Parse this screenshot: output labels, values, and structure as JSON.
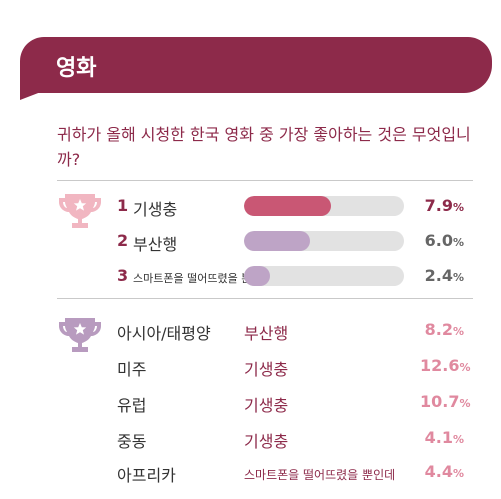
{
  "header": {
    "title": "영화"
  },
  "question": "귀하가 올해 시청한 한국 영화 중 가장 좋아하는 것은 무엇입니까?",
  "colors": {
    "brand": "#8d2a4a",
    "bar_rank1": "#c95774",
    "bar_rank2": "#bea4c6",
    "bar_rank3": "#bea4c6",
    "track": "#e2e2e2",
    "trophy_rank": "#f1b6c1",
    "trophy_region": "#b89bbf",
    "pct_rank1": "#8d2a4a",
    "pct_other": "#666666",
    "region_pct": "#e0899f"
  },
  "icons": {
    "rank_trophy": "trophy-icon",
    "region_trophy": "trophy-icon"
  },
  "chart_data": [
    {
      "type": "bar",
      "categories": [
        "기생충",
        "부산행",
        "스마트폰을 떨어뜨렸을 뿐인데"
      ],
      "ranks": [
        "1",
        "2",
        "3"
      ],
      "values": [
        7.9,
        6.0,
        2.4
      ],
      "unit": "%"
    },
    {
      "type": "table",
      "columns": [
        "region",
        "title",
        "value"
      ],
      "rows": [
        {
          "region": "아시아/태평양",
          "title": "부산행",
          "value": 8.2
        },
        {
          "region": "미주",
          "title": "기생충",
          "value": 12.6
        },
        {
          "region": "유럽",
          "title": "기생충",
          "value": 10.7
        },
        {
          "region": "중동",
          "title": "기생충",
          "value": 4.1
        },
        {
          "region": "아프리카",
          "title": "스마트폰을 떨어뜨렸을 뿐인데",
          "value": 4.4
        }
      ],
      "unit": "%"
    }
  ]
}
